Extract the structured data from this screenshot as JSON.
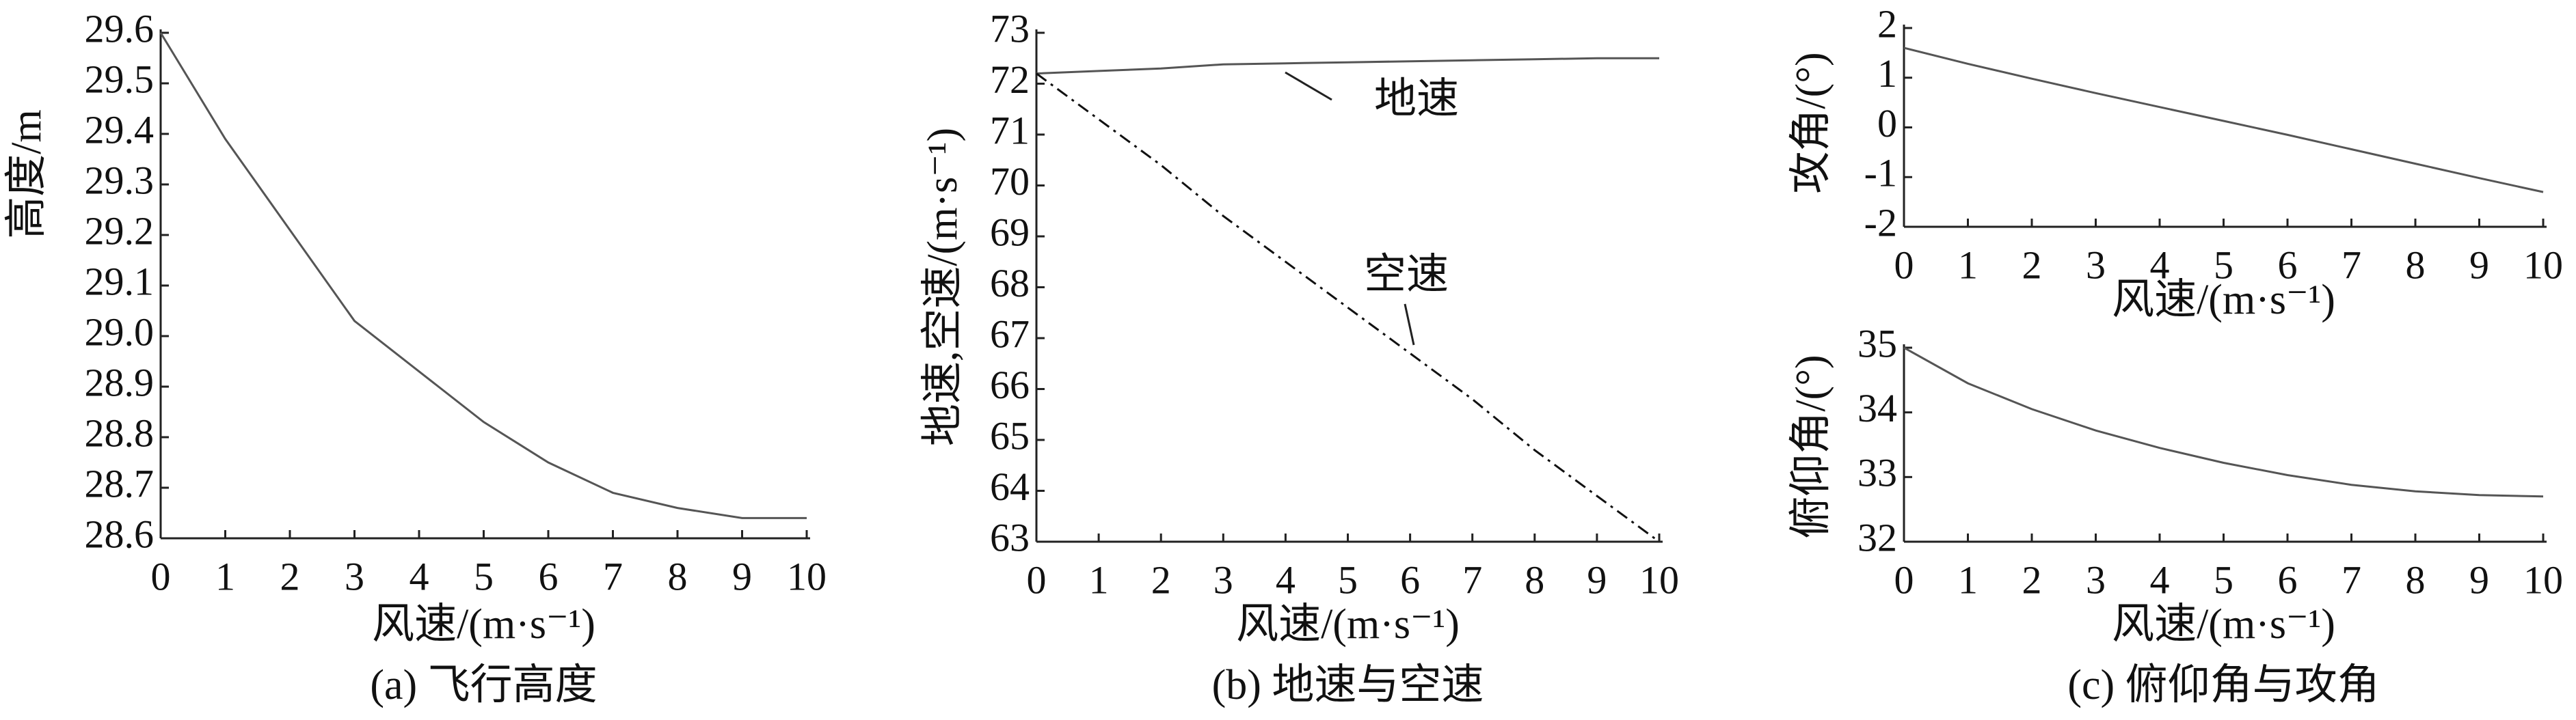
{
  "chart_data": [
    {
      "type": "line",
      "ylabel": "高度/m",
      "xlabel": "风速/(m·s⁻¹)",
      "caption": "(a) 飞行高度",
      "x": [
        0,
        1,
        2,
        3,
        4,
        5,
        6,
        7,
        8,
        9,
        10
      ],
      "xlim": [
        0,
        10
      ],
      "xticks": [
        0,
        1,
        2,
        3,
        4,
        5,
        6,
        7,
        8,
        9,
        10
      ],
      "ylim": [
        28.6,
        29.6
      ],
      "yticks": [
        28.6,
        28.7,
        28.8,
        28.9,
        {
          "value": 29,
          "label": "29.0"
        },
        29.1,
        29.2,
        29.3,
        29.4,
        29.5,
        29.6
      ],
      "series": [
        {
          "name": null,
          "color": "#555555",
          "dash": "solid",
          "values": [
            29.6,
            29.39,
            29.21,
            29.03,
            28.93,
            28.83,
            28.75,
            28.69,
            28.66,
            28.64,
            28.64
          ]
        }
      ]
    },
    {
      "type": "line",
      "ylabel": "地速,空速/(m·s⁻¹)",
      "xlabel": "风速/(m·s⁻¹)",
      "caption": "(b) 地速与空速",
      "x": [
        0,
        1,
        2,
        3,
        4,
        5,
        6,
        7,
        8,
        9,
        10
      ],
      "xlim": [
        0,
        10
      ],
      "xticks": [
        0,
        1,
        2,
        3,
        4,
        5,
        6,
        7,
        8,
        9,
        10
      ],
      "ylim": [
        63,
        73
      ],
      "yticks": [
        63,
        64,
        65,
        66,
        67,
        68,
        69,
        70,
        71,
        72,
        73
      ],
      "series": [
        {
          "name": "地速",
          "color": "#555555",
          "dash": "solid",
          "values": [
            72.2,
            72.25,
            72.3,
            72.38,
            72.4,
            72.42,
            72.44,
            72.46,
            72.48,
            72.5,
            72.5
          ]
        },
        {
          "name": "空速",
          "color": "#111111",
          "dash": "dashdot",
          "values": [
            72.2,
            71.3,
            70.4,
            69.4,
            68.5,
            67.6,
            66.7,
            65.8,
            64.8,
            63.9,
            63.0
          ]
        }
      ]
    },
    {
      "type": "line",
      "ylabel": "攻角/(°)",
      "xlabel": "风速/(m·s⁻¹)",
      "x": [
        0,
        1,
        2,
        3,
        4,
        5,
        6,
        7,
        8,
        9,
        10
      ],
      "xlim": [
        0,
        10
      ],
      "xticks": [
        0,
        1,
        2,
        3,
        4,
        5,
        6,
        7,
        8,
        9,
        10
      ],
      "ylim": [
        -2,
        2
      ],
      "yticks": [
        -2,
        -1,
        0,
        1,
        2
      ],
      "series": [
        {
          "name": null,
          "color": "#555555",
          "dash": "solid",
          "values": [
            1.6,
            1.28,
            0.98,
            0.69,
            0.41,
            0.13,
            -0.15,
            -0.44,
            -0.73,
            -1.02,
            -1.3
          ]
        }
      ]
    },
    {
      "type": "line",
      "ylabel": "俯仰角/(°)",
      "xlabel": "风速/(m·s⁻¹)",
      "caption": "(c) 俯仰角与攻角",
      "x": [
        0,
        1,
        2,
        3,
        4,
        5,
        6,
        7,
        8,
        9,
        10
      ],
      "xlim": [
        0,
        10
      ],
      "xticks": [
        0,
        1,
        2,
        3,
        4,
        5,
        6,
        7,
        8,
        9,
        10
      ],
      "ylim": [
        32,
        35
      ],
      "yticks": [
        32,
        33,
        34,
        35
      ],
      "series": [
        {
          "name": null,
          "color": "#555555",
          "dash": "solid",
          "values": [
            35.0,
            34.45,
            34.05,
            33.72,
            33.45,
            33.22,
            33.03,
            32.88,
            32.78,
            32.72,
            32.7
          ]
        }
      ]
    }
  ]
}
